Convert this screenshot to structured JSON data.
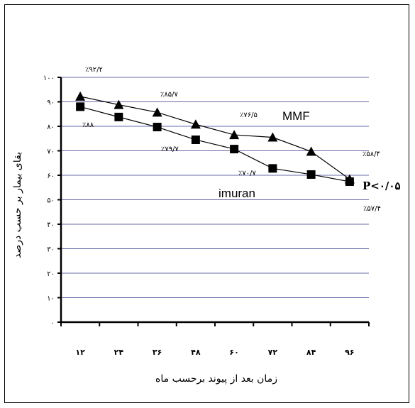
{
  "chart_data": {
    "type": "line",
    "xlabel": "زمان بعد از پیوند برحسب ماه",
    "ylabel": "بقای بیمار بر حسب درصد",
    "categories": [
      "۱۲",
      "۲۴",
      "۳۶",
      "۴۸",
      "۶۰",
      "۷۲",
      "۸۴",
      "۹۶"
    ],
    "ylim": [
      0,
      100
    ],
    "yticks": [
      0,
      10,
      20,
      30,
      40,
      50,
      60,
      70,
      80,
      90,
      100
    ],
    "ytick_labels": [
      "۰",
      "۱۰",
      "۲۰",
      "۳۰",
      "۴۰",
      "۵۰",
      "۶۰",
      "۷۰",
      "۸۰",
      "۹۰",
      "۱۰۰"
    ],
    "grid": true,
    "series": [
      {
        "name": "MMF",
        "marker": "triangle",
        "values": [
          92.2,
          88.8,
          85.7,
          80.8,
          76.5,
          75.5,
          69.7,
          58.4
        ]
      },
      {
        "name": "imuran",
        "marker": "square",
        "values": [
          88,
          83.8,
          79.7,
          74.5,
          70.7,
          62.8,
          60.3,
          57.4
        ]
      }
    ],
    "annotations": [
      "٪۹۲/۲",
      "٪۸۵/۷",
      "٪۷۶/۵",
      "٪۵۸/۴",
      "٪۸۸",
      "٪۷۹/۷",
      "٪۷۰/۷",
      "٪۵۷/۴"
    ],
    "p_value": "P<۰/۰۵",
    "colors": {
      "line": "#000000",
      "grid": "#6a6aa8",
      "marker": "#000000"
    }
  }
}
